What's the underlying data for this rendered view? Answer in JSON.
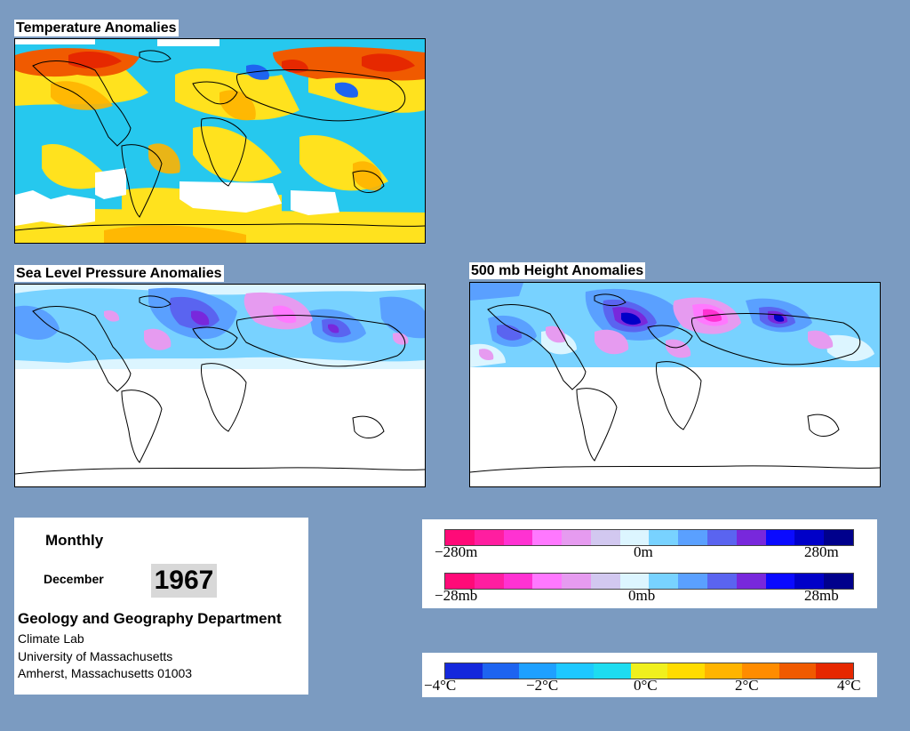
{
  "maps": {
    "temperature": {
      "title": "Temperature Anomalies"
    },
    "slp": {
      "title": "Sea Level Pressure Anomalies"
    },
    "height500": {
      "title": "500 mb Height Anomalies"
    }
  },
  "info": {
    "period": "Monthly",
    "month": "December",
    "year": "1967",
    "department": "Geology and Geography Department",
    "lab": "Climate Lab",
    "university": "University of Massachusetts",
    "address": "Amherst, Massachusetts 01003"
  },
  "legends": {
    "height": {
      "left": "−280m",
      "mid": "0m",
      "right": "280m"
    },
    "pressure": {
      "left": "−28mb",
      "mid": "0mb",
      "right": "28mb"
    },
    "temperature": {
      "labels": [
        "−4°C",
        "−2°C",
        "0°C",
        "2°C",
        "4°C"
      ]
    }
  },
  "colors": {
    "background": "#7b9bc1",
    "anomaly_scale": [
      "#ff0a78",
      "#ff1ea0",
      "#ff32d2",
      "#ff78ff",
      "#e69bf0",
      "#d2c8f0",
      "#dcf5ff",
      "#78d2ff",
      "#5aa0ff",
      "#5a64f0",
      "#7828dc",
      "#0a0aff",
      "#0000c8",
      "#00008c"
    ],
    "temperature_scale": [
      "#1428dc",
      "#1e64f0",
      "#1ea0ff",
      "#1ec8ff",
      "#1edcf0",
      "#f0f01e",
      "#ffdc00",
      "#ffb400",
      "#ff8c00",
      "#f05a00",
      "#e62800"
    ]
  }
}
